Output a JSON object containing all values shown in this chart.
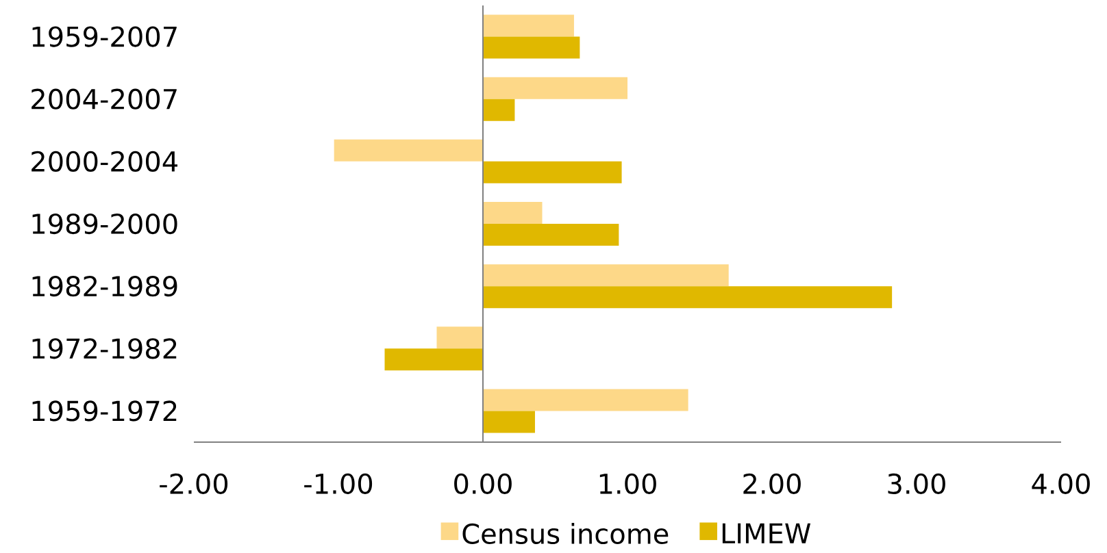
{
  "chart_data": {
    "type": "bar",
    "orientation": "horizontal",
    "categories": [
      "1959-2007",
      "2004-2007",
      "2000-2004",
      "1989-2000",
      "1982-1989",
      "1972-1982",
      "1959-1972"
    ],
    "series": [
      {
        "name": "Census income",
        "color": "#fdd888",
        "values": [
          0.63,
          1.0,
          -1.03,
          0.41,
          1.7,
          -0.32,
          1.42
        ]
      },
      {
        "name": "LIMEW",
        "color": "#e0b800",
        "values": [
          0.67,
          0.22,
          0.96,
          0.94,
          2.83,
          -0.68,
          0.36
        ]
      }
    ],
    "xlim": [
      -2,
      4
    ],
    "xticks": [
      {
        "value": -2,
        "label": "-2.00"
      },
      {
        "value": -1,
        "label": "-1.00"
      },
      {
        "value": 0,
        "label": "0.00"
      },
      {
        "value": 1,
        "label": "1.00"
      },
      {
        "value": 2,
        "label": "2.00"
      },
      {
        "value": 3,
        "label": "3.00"
      },
      {
        "value": 4,
        "label": "4.00"
      }
    ],
    "legend": "bottom"
  }
}
